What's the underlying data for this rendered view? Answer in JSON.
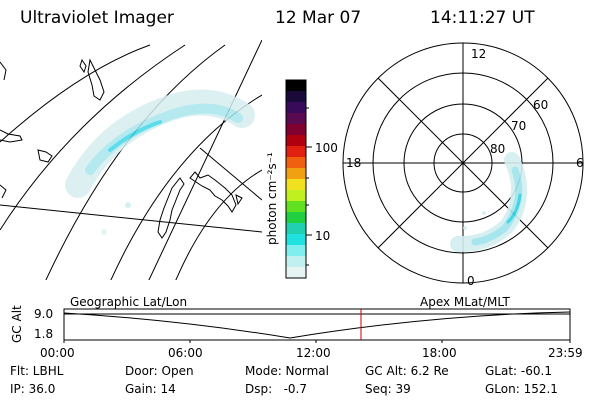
{
  "header": {
    "instrument": "Ultraviolet Imager",
    "date": "12 Mar 07",
    "time": "14:11:27 UT"
  },
  "colorbar": {
    "unit_label": "photon cm⁻²s⁻¹",
    "ticks": [
      "100",
      "10"
    ],
    "colors": [
      "#000000",
      "#1a0a3a",
      "#3a0a5a",
      "#5a0a50",
      "#800030",
      "#b00010",
      "#e02010",
      "#f06010",
      "#f0a010",
      "#f0e020",
      "#c0f020",
      "#60e020",
      "#20d040",
      "#20d0b0",
      "#20e0e0",
      "#80eeee",
      "#c0f0f0",
      "#e6f4f4"
    ]
  },
  "polar_plot": {
    "mlt_labels": [
      "12",
      "18",
      "6",
      "0"
    ],
    "lat_labels": [
      "60",
      "70",
      "80"
    ]
  },
  "timeline": {
    "left_label": "Geographic Lat/Lon",
    "right_label": "Apex MLat/MLT",
    "axis_title": "GC Alt",
    "y_ticks": [
      "9.0",
      "1.8"
    ],
    "x_ticks": [
      "00:00",
      "06:00",
      "12:00",
      "18:00",
      "23:59"
    ],
    "marker_color": "#cc0000"
  },
  "info": {
    "filter": "Flt: LBHL",
    "door": "Door: Open",
    "mode": "Mode: Normal",
    "gc_alt": "GC Alt: 6.2 Re",
    "glat": "GLat: -60.1",
    "ip": "IP: 36.0",
    "gain": "Gain: 14",
    "dsp": "Dsp:   -0.7",
    "seq": "Seq: 39",
    "glon": "GLon: 152.1"
  }
}
